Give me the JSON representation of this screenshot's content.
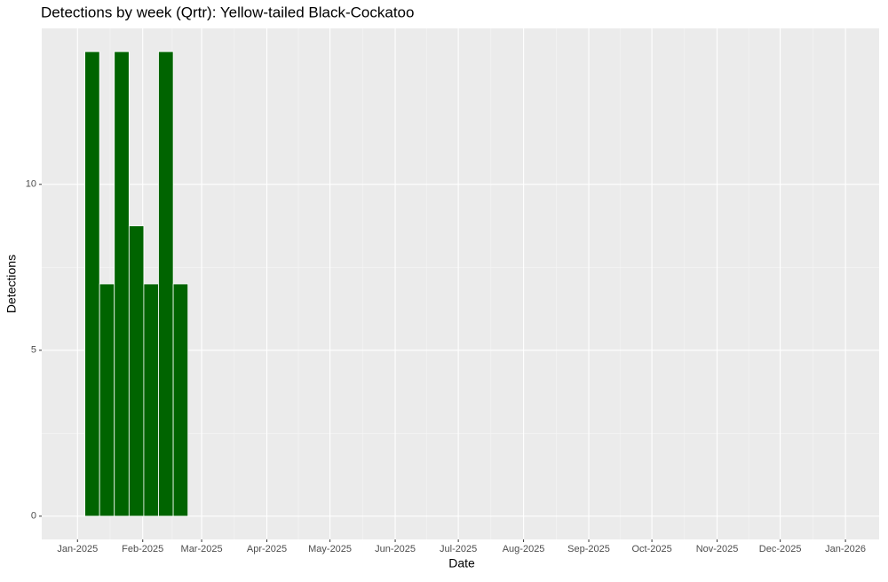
{
  "chart_data": {
    "type": "bar",
    "title": "Detections by week (Qrtr): Yellow-tailed Black-Cockatoo",
    "x_label": "Date",
    "y_label": "Detections",
    "x": [
      "2025-01-08",
      "2025-01-15",
      "2025-01-22",
      "2025-01-29",
      "2025-02-05",
      "2025-02-12",
      "2025-02-19"
    ],
    "values": [
      14,
      7,
      14,
      8.75,
      7,
      14,
      7
    ],
    "color": "#006400",
    "xlim": [
      "2024-12-15",
      "2026-01-17"
    ],
    "xticks": [
      {
        "value": "2025-01-01",
        "label": "Jan-2025"
      },
      {
        "value": "2025-02-01",
        "label": "Feb-2025"
      },
      {
        "value": "2025-03-01",
        "label": "Mar-2025"
      },
      {
        "value": "2025-04-01",
        "label": "Apr-2025"
      },
      {
        "value": "2025-05-01",
        "label": "May-2025"
      },
      {
        "value": "2025-06-01",
        "label": "Jun-2025"
      },
      {
        "value": "2025-07-01",
        "label": "Jul-2025"
      },
      {
        "value": "2025-08-01",
        "label": "Aug-2025"
      },
      {
        "value": "2025-09-01",
        "label": "Sep-2025"
      },
      {
        "value": "2025-10-01",
        "label": "Oct-2025"
      },
      {
        "value": "2025-11-01",
        "label": "Nov-2025"
      },
      {
        "value": "2025-12-01",
        "label": "Dec-2025"
      },
      {
        "value": "2026-01-01",
        "label": "Jan-2026"
      }
    ],
    "ylim": [
      -0.7,
      14.7
    ],
    "yticks": [
      0,
      5,
      10
    ],
    "grid": true
  }
}
